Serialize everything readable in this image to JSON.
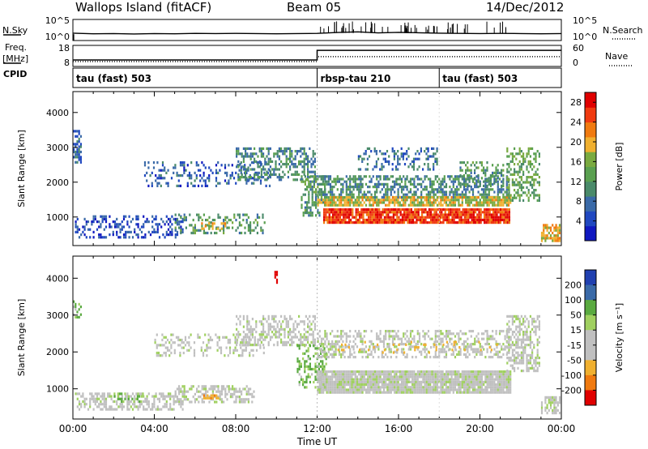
{
  "header": {
    "station": "Wallops Island (fitACF)",
    "beam": "Beam 05",
    "date": "14/Dec/2012"
  },
  "side_labels": {
    "nsky": "N.Sky",
    "freq_top": "Freq.",
    "freq_bottom": "[MHz]",
    "cpid": "CPID",
    "nsearch": "N.Search",
    "nave": "Nave"
  },
  "colors": {
    "frame": "#000000",
    "power_scale": [
      "#1018c0",
      "#2048c0",
      "#3a6aa8",
      "#4a8a6a",
      "#5aa050",
      "#7aaa40",
      "#f0b030",
      "#f07a10",
      "#f03a10",
      "#e00000"
    ],
    "velocity_scale": [
      "#2040b0",
      "#3a6aa8",
      "#5aaa40",
      "#a0d060",
      "#c0c0c0",
      "#c0c0c0",
      "#f0b030",
      "#f07a10",
      "#f03a10",
      "#e00000"
    ]
  },
  "chart_data": [
    {
      "type": "line",
      "panel": "noise",
      "left_label": "N.Sky",
      "right_label": "N.Search",
      "yticks_left": [
        "10^5",
        "10^0"
      ],
      "yticks_right": [
        "10^5",
        "10^0"
      ],
      "x": [
        0,
        1,
        2,
        3,
        4,
        5,
        6,
        7,
        8,
        9,
        10,
        11,
        12,
        13,
        14,
        15,
        16,
        17,
        18,
        19,
        20,
        21,
        22,
        23,
        24
      ],
      "series": [
        {
          "values": [
            0.35,
            0.32,
            0.33,
            0.31,
            0.33,
            0.32,
            0.34,
            0.33,
            0.34,
            0.33,
            0.32,
            0.33,
            0.34,
            0.38,
            0.41,
            0.36,
            0.39,
            0.37,
            0.35,
            0.34,
            0.33,
            0.34,
            0.33,
            0.32,
            0.33
          ]
        }
      ]
    },
    {
      "type": "line",
      "panel": "frequency",
      "ylabel": "Freq. [MHz]",
      "yticks_left": [
        "18",
        "8"
      ],
      "yticks_right": [
        "60",
        "0"
      ],
      "freq_mhz": [
        {
          "from": 0,
          "to": 12,
          "value": 10.4
        },
        {
          "from": 12,
          "to": 24,
          "value": 15.4
        }
      ],
      "nave": [
        {
          "from": 0,
          "to": 12,
          "value": 14
        },
        {
          "from": 12,
          "to": 24,
          "value": 28
        }
      ]
    },
    {
      "type": "table",
      "panel": "cpid",
      "segments": [
        {
          "start": 0,
          "label": "tau (fast) 503"
        },
        {
          "start": 12,
          "label": "rbsp-tau 210"
        },
        {
          "start": 18,
          "label": "tau (fast) 503"
        }
      ]
    },
    {
      "type": "heatmap",
      "panel": "power",
      "ylabel": "Slant Range [km]",
      "yticks": [
        "1000",
        "2000",
        "3000",
        "4000"
      ],
      "ylim": [
        180,
        4600
      ],
      "colorbar_label": "Power [dB]",
      "colorbar_ticks": [
        "4",
        "8",
        "12",
        "16",
        "20",
        "24",
        "28"
      ],
      "clim": [
        0,
        30
      ],
      "regions": [
        {
          "t0": 0.1,
          "t1": 5.5,
          "r0": 350,
          "r1": 1050,
          "level": 5,
          "density": 0.35
        },
        {
          "t0": 0.0,
          "t1": 0.5,
          "r0": 2500,
          "r1": 3500,
          "level": 7,
          "density": 0.6
        },
        {
          "t0": 5.0,
          "t1": 9.5,
          "r0": 500,
          "r1": 1100,
          "level": 12,
          "density": 0.3
        },
        {
          "t0": 6.3,
          "t1": 7.7,
          "r0": 600,
          "r1": 850,
          "level": 18,
          "density": 0.5
        },
        {
          "t0": 3.5,
          "t1": 9.8,
          "r0": 1800,
          "r1": 2600,
          "level": 6,
          "density": 0.25
        },
        {
          "t0": 8.0,
          "t1": 12.0,
          "r0": 2000,
          "r1": 3000,
          "level": 10,
          "density": 0.45
        },
        {
          "t0": 11.2,
          "t1": 12.5,
          "r0": 1000,
          "r1": 2200,
          "level": 12,
          "density": 0.5
        },
        {
          "t0": 12.0,
          "t1": 21.5,
          "r0": 1500,
          "r1": 2200,
          "level": 10,
          "density": 0.55
        },
        {
          "t0": 12.0,
          "t1": 21.6,
          "r0": 1300,
          "r1": 1600,
          "level": 18,
          "density": 0.8
        },
        {
          "t0": 12.3,
          "t1": 21.5,
          "r0": 750,
          "r1": 1250,
          "level": 26,
          "density": 0.9
        },
        {
          "t0": 14.0,
          "t1": 18.0,
          "r0": 2300,
          "r1": 3000,
          "level": 8,
          "density": 0.3
        },
        {
          "t0": 19.0,
          "t1": 21.2,
          "r0": 1800,
          "r1": 2600,
          "level": 12,
          "density": 0.4
        },
        {
          "t0": 21.3,
          "t1": 23.0,
          "r0": 1400,
          "r1": 3000,
          "level": 14,
          "density": 0.45
        },
        {
          "t0": 23.0,
          "t1": 24.0,
          "r0": 250,
          "r1": 800,
          "level": 20,
          "density": 0.6
        }
      ]
    },
    {
      "type": "heatmap",
      "panel": "velocity",
      "ylabel": "Slant Range [km]",
      "yticks": [
        "1000",
        "2000",
        "3000",
        "4000"
      ],
      "ylim": [
        180,
        4600
      ],
      "colorbar_label": "Velocity [m s⁻¹]",
      "colorbar_ticks": [
        "200",
        "100",
        "50",
        "15",
        "-15",
        "-50",
        "-100",
        "-200"
      ],
      "clim": [
        -250,
        250
      ],
      "regions": [
        {
          "t0": 0.1,
          "t1": 5.5,
          "r0": 400,
          "r1": 900,
          "v": 0,
          "density": 0.5
        },
        {
          "t0": 0.0,
          "t1": 0.5,
          "r0": 2900,
          "r1": 3400,
          "v": 30,
          "density": 0.5
        },
        {
          "t0": 2.0,
          "t1": 3.5,
          "r0": 600,
          "r1": 900,
          "v": 40,
          "density": 0.4
        },
        {
          "t0": 5.0,
          "t1": 9.0,
          "r0": 600,
          "r1": 1100,
          "v": 0,
          "density": 0.5
        },
        {
          "t0": 6.4,
          "t1": 7.2,
          "r0": 650,
          "r1": 850,
          "v": -60,
          "density": 0.5
        },
        {
          "t0": 4.0,
          "t1": 9.5,
          "r0": 1800,
          "r1": 2500,
          "v": 0,
          "density": 0.3
        },
        {
          "t0": 8.0,
          "t1": 12.0,
          "r0": 2100,
          "r1": 3000,
          "v": 0,
          "density": 0.5
        },
        {
          "t0": 11.0,
          "t1": 12.5,
          "r0": 1000,
          "r1": 2200,
          "v": 35,
          "density": 0.4
        },
        {
          "t0": 12.0,
          "t1": 21.6,
          "r0": 800,
          "r1": 1500,
          "v": 0,
          "density": 0.95
        },
        {
          "t0": 12.0,
          "t1": 21.5,
          "r0": 1800,
          "r1": 2600,
          "v": 0,
          "density": 0.45
        },
        {
          "t0": 13.0,
          "t1": 21.0,
          "r0": 1900,
          "r1": 2300,
          "v": -40,
          "density": 0.15
        },
        {
          "t0": 21.3,
          "t1": 23.0,
          "r0": 1400,
          "r1": 3000,
          "v": 0,
          "density": 0.55
        },
        {
          "t0": 9.9,
          "t1": 10.1,
          "r0": 3800,
          "r1": 4200,
          "v": -210,
          "density": 0.9
        },
        {
          "t0": 23.0,
          "t1": 24.0,
          "r0": 250,
          "r1": 800,
          "v": 0,
          "density": 0.6
        }
      ]
    }
  ],
  "x_axis": {
    "label": "Time UT",
    "ticks": [
      "00:00",
      "04:00",
      "08:00",
      "12:00",
      "16:00",
      "20:00",
      "00:00"
    ],
    "ticks_hours": [
      0,
      4,
      8,
      12,
      16,
      20,
      24
    ]
  }
}
